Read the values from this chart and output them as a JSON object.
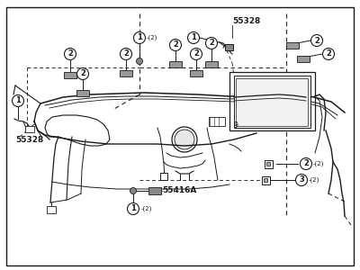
{
  "bg_color": "#ffffff",
  "line_color": "#1a1a1a",
  "dash_color": "#333333",
  "border_color": "#222222",
  "figsize": [
    4.0,
    3.0
  ],
  "dpi": 100,
  "part_55328": "55328",
  "part_55416A": "55416A",
  "label_1": "1",
  "label_2": "2",
  "label_3": "3",
  "circle_r": 6.5,
  "fontsize_label": 6,
  "fontsize_part": 6.5
}
